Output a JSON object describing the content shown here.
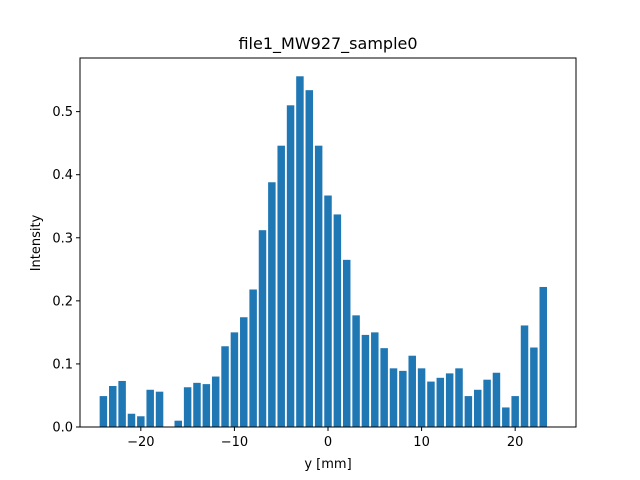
{
  "chart_data": {
    "type": "bar",
    "title": "file1_MW927_sample0",
    "xlabel": "y [mm]",
    "ylabel": "Intensity",
    "xlim": [
      -26.5,
      26.5
    ],
    "ylim": [
      0,
      0.585
    ],
    "xticks": [
      -20,
      -10,
      0,
      10,
      20
    ],
    "xtick_labels": [
      "−20",
      "−10",
      "0",
      "10",
      "20"
    ],
    "yticks": [
      0.0,
      0.1,
      0.2,
      0.3,
      0.4,
      0.5
    ],
    "ytick_labels": [
      "0.0",
      "0.1",
      "0.2",
      "0.3",
      "0.4",
      "0.5"
    ],
    "grid": false,
    "bar_color": "#1f77b4",
    "bar_width": 0.8,
    "x": [
      -24,
      -23,
      -22,
      -21,
      -20,
      -19,
      -18,
      -17,
      -16,
      -15,
      -14,
      -13,
      -12,
      -11,
      -10,
      -9,
      -8,
      -7,
      -6,
      -5,
      -4,
      -3,
      -2,
      -1,
      0,
      1,
      2,
      3,
      4,
      5,
      6,
      7,
      8,
      9,
      10,
      11,
      12,
      13,
      14,
      15,
      16,
      17,
      18,
      19,
      20,
      21,
      22,
      23,
      24
    ],
    "values": [
      0.049,
      0.065,
      0.073,
      0.021,
      0.017,
      0.059,
      0.056,
      0.0,
      0.01,
      0.063,
      0.07,
      0.068,
      0.08,
      0.128,
      0.15,
      0.174,
      0.218,
      0.312,
      0.388,
      0.446,
      0.51,
      0.556,
      0.534,
      0.446,
      0.367,
      0.337,
      0.265,
      0.177,
      0.146,
      0.15,
      0.125,
      0.093,
      0.089,
      0.113,
      0.093,
      0.072,
      0.078,
      0.085,
      0.093,
      0.049,
      0.059,
      0.075,
      0.086,
      0.031,
      0.049,
      0.161,
      0.126,
      0.222,
      0.0
    ]
  }
}
